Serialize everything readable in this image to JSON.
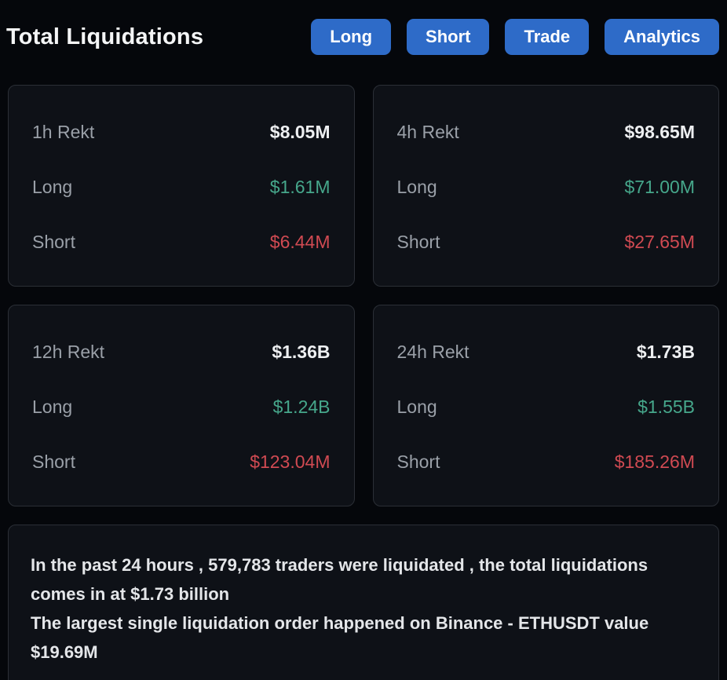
{
  "header": {
    "title": "Total Liquidations",
    "buttons": [
      {
        "label": "Long"
      },
      {
        "label": "Short"
      },
      {
        "label": "Trade"
      },
      {
        "label": "Analytics"
      }
    ]
  },
  "cards": [
    {
      "period": "1h Rekt",
      "total": "$8.05M",
      "long_label": "Long",
      "long": "$1.61M",
      "short_label": "Short",
      "short": "$6.44M"
    },
    {
      "period": "4h Rekt",
      "total": "$98.65M",
      "long_label": "Long",
      "long": "$71.00M",
      "short_label": "Short",
      "short": "$27.65M"
    },
    {
      "period": "12h Rekt",
      "total": "$1.36B",
      "long_label": "Long",
      "long": "$1.24B",
      "short_label": "Short",
      "short": "$123.04M"
    },
    {
      "period": "24h Rekt",
      "total": "$1.73B",
      "long_label": "Long",
      "long": "$1.55B",
      "short_label": "Short",
      "short": "$185.26M"
    }
  ],
  "summary": {
    "line1": "In the past 24 hours , 579,783 traders were liquidated , the total liquidations comes in at $1.73 billion",
    "line2": "The largest single liquidation order happened on Binance - ETHUSDT value $19.69M"
  },
  "colors": {
    "bg": "#05070b",
    "card-bg": "#0e1117",
    "card-border": "#2b2f36",
    "label-gray": "#9aa0a8",
    "value-white": "#edeff1",
    "green": "#46a78b",
    "red": "#d04a52",
    "button-blue": "#2e6bc8",
    "title-white": "#f4f5f6",
    "summary-text": "#e4e6e9"
  }
}
